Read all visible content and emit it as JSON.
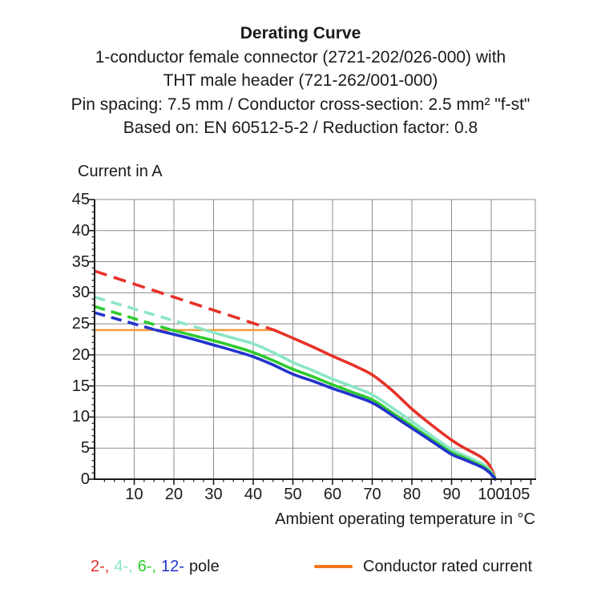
{
  "title": "Derating Curve",
  "subtitle_lines": [
    "1-conductor female connector (2721-202/026-000) with",
    "THT male header (721-262/001-000)",
    "Pin spacing: 7.5 mm / Conductor cross-section: 2.5 mm² \"f-st\"",
    "Based on: EN 60512-5-2 / Reduction factor: 0.8"
  ],
  "legend": {
    "pole_parts": [
      {
        "text": "2-,",
        "color": "#e73128"
      },
      {
        "text": "4-,",
        "color": "#8ce6c6"
      },
      {
        "text": "6-,",
        "color": "#2fca2f"
      },
      {
        "text": "12-",
        "color": "#2334cc"
      },
      {
        "text": "pole",
        "color": "#1a1a1a"
      }
    ],
    "rated_label": "Conductor rated current",
    "rated_swatch_color": "#f4741b"
  },
  "chart_data": {
    "type": "line",
    "title": "Derating Curve",
    "xlabel": "Ambient operating temperature in °C",
    "ylabel": "Current in A",
    "xlim": [
      0,
      111
    ],
    "ylim": [
      0,
      45
    ],
    "x_ticks": [
      10,
      20,
      30,
      40,
      50,
      60,
      70,
      80,
      90,
      100,
      105
    ],
    "x_minor_step": 2.5,
    "y_ticks": [
      45,
      40,
      35,
      30,
      25,
      20,
      15,
      10,
      5,
      0
    ],
    "y_minor_step": 1,
    "grid": true,
    "grid_color": "#8c8c8c",
    "axis_color": "#1a1a1a",
    "rated_line": {
      "label": "Conductor rated current",
      "value_a": 24,
      "x_start_c": 0,
      "x_end_c": 45.3,
      "color": "#f89b3e"
    },
    "series": [
      {
        "name": "2-pole",
        "color": "#e73128",
        "dash": "16 9",
        "dashed_points": [
          [
            0,
            33.5
          ],
          [
            45.3,
            24.0
          ]
        ],
        "solid_points": [
          [
            45.3,
            24.0
          ],
          [
            50,
            22.7
          ],
          [
            55,
            21.3
          ],
          [
            60,
            19.8
          ],
          [
            65,
            18.4
          ],
          [
            70,
            16.8
          ],
          [
            75,
            14.3
          ],
          [
            80,
            11.3
          ],
          [
            85,
            8.7
          ],
          [
            90,
            6.3
          ],
          [
            93,
            5.1
          ],
          [
            96,
            4.1
          ],
          [
            98,
            3.3
          ],
          [
            99.5,
            2.3
          ],
          [
            100.5,
            1.0
          ],
          [
            101,
            0
          ]
        ]
      },
      {
        "name": "4-pole",
        "color": "#8ce6c6",
        "dash": "13.5 8",
        "dashed_points": [
          [
            0,
            29.3
          ],
          [
            28,
            24.0
          ]
        ],
        "solid_points": [
          [
            28,
            24.0
          ],
          [
            30,
            23.6
          ],
          [
            35,
            22.7
          ],
          [
            40,
            21.8
          ],
          [
            45,
            20.4
          ],
          [
            50,
            18.8
          ],
          [
            55,
            17.5
          ],
          [
            60,
            16.1
          ],
          [
            65,
            14.9
          ],
          [
            70,
            13.6
          ],
          [
            75,
            11.5
          ],
          [
            80,
            9.3
          ],
          [
            85,
            7.0
          ],
          [
            90,
            4.8
          ],
          [
            93,
            3.9
          ],
          [
            96,
            3.0
          ],
          [
            98,
            2.4
          ],
          [
            99.5,
            1.6
          ],
          [
            100.7,
            0.5
          ],
          [
            101,
            0
          ]
        ]
      },
      {
        "name": "6-pole",
        "color": "#2fca2f",
        "dash": "13.5 8",
        "dashed_points": [
          [
            0,
            27.8
          ],
          [
            19.5,
            24.0
          ]
        ],
        "solid_points": [
          [
            19.5,
            24.0
          ],
          [
            25,
            23.1
          ],
          [
            30,
            22.3
          ],
          [
            35,
            21.4
          ],
          [
            40,
            20.4
          ],
          [
            45,
            19.1
          ],
          [
            50,
            17.7
          ],
          [
            55,
            16.5
          ],
          [
            60,
            15.2
          ],
          [
            65,
            14.0
          ],
          [
            70,
            12.8
          ],
          [
            75,
            10.7
          ],
          [
            80,
            8.6
          ],
          [
            85,
            6.4
          ],
          [
            90,
            4.3
          ],
          [
            93,
            3.5
          ],
          [
            96,
            2.6
          ],
          [
            98,
            2.0
          ],
          [
            99.5,
            1.3
          ],
          [
            100.7,
            0.4
          ],
          [
            101,
            0
          ]
        ]
      },
      {
        "name": "12-pole",
        "color": "#2334cc",
        "dash": "13.5 8",
        "dashed_points": [
          [
            0,
            26.8
          ],
          [
            15.5,
            24.0
          ]
        ],
        "solid_points": [
          [
            15.5,
            24.0
          ],
          [
            20,
            23.3
          ],
          [
            25,
            22.5
          ],
          [
            30,
            21.6
          ],
          [
            35,
            20.7
          ],
          [
            40,
            19.7
          ],
          [
            45,
            18.4
          ],
          [
            50,
            16.9
          ],
          [
            55,
            15.8
          ],
          [
            60,
            14.6
          ],
          [
            65,
            13.5
          ],
          [
            70,
            12.3
          ],
          [
            75,
            10.3
          ],
          [
            80,
            8.2
          ],
          [
            85,
            6.1
          ],
          [
            90,
            4.0
          ],
          [
            93,
            3.2
          ],
          [
            96,
            2.4
          ],
          [
            98,
            1.8
          ],
          [
            99.5,
            1.1
          ],
          [
            100.7,
            0.3
          ],
          [
            101,
            0
          ]
        ]
      }
    ]
  }
}
